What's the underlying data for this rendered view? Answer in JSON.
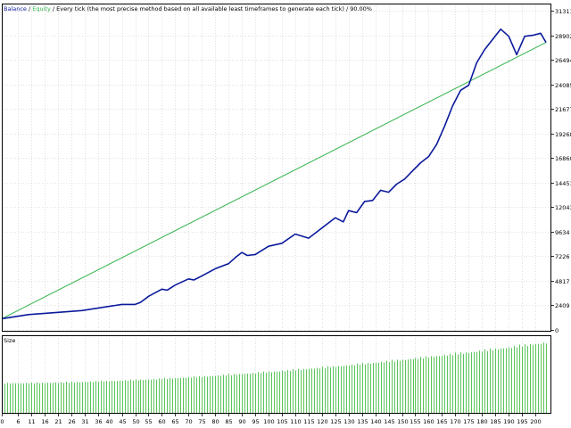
{
  "legend": {
    "balance_label": "Balance",
    "separator": " / ",
    "equity_label": "Equity",
    "description": " / Every tick (the most precise method based on all available least timeframes to generate each tick) / 90.00%"
  },
  "size_panel_label": "Size",
  "colors": {
    "balance": "#0b1a9c",
    "equity": "#32b24a",
    "size_bars": "#5cc45c",
    "grid": "#c8c8c8",
    "border": "#000000"
  },
  "chart_data": [
    {
      "type": "line",
      "series": [
        {
          "name": "Balance",
          "x": [
            0,
            10,
            20,
            30,
            40,
            45,
            50,
            52,
            55,
            60,
            62,
            65,
            70,
            72,
            75,
            80,
            85,
            88,
            90,
            92,
            95,
            100,
            105,
            110,
            115,
            118,
            120,
            125,
            128,
            130,
            133,
            136,
            139,
            142,
            145,
            148,
            151,
            154,
            157,
            160,
            163,
            166,
            169,
            172,
            175,
            178,
            181,
            184,
            187,
            190,
            193,
            196,
            199,
            202,
            204
          ],
          "values": [
            1100,
            1500,
            1700,
            1900,
            2300,
            2500,
            2500,
            2700,
            3300,
            4000,
            3900,
            4400,
            5000,
            4900,
            5300,
            6000,
            6500,
            7200,
            7600,
            7300,
            7400,
            8200,
            8500,
            9400,
            9000,
            9600,
            10000,
            11000,
            10600,
            11700,
            11500,
            12600,
            12700,
            13700,
            13500,
            14300,
            14800,
            15600,
            16400,
            17000,
            18200,
            20000,
            22000,
            23500,
            24000,
            26200,
            27500,
            28500,
            29500,
            28800,
            27000,
            28800,
            28900,
            29100,
            28200
          ],
          "color": "#0b1a9c"
        },
        {
          "name": "Equity",
          "x": [
            0,
            204
          ],
          "values": [
            1100,
            28200
          ],
          "color": "#32b24a"
        }
      ],
      "y_ticks": [
        "0",
        "2409",
        "4817",
        "7226",
        "9634",
        "12043",
        "14451",
        "16860",
        "19268",
        "21677",
        "24085",
        "26494",
        "28902",
        "31311"
      ],
      "ylim": [
        0,
        31311
      ],
      "grid": true
    },
    {
      "type": "bar",
      "title": "Size",
      "x_ticks": [
        "0",
        "6",
        "11",
        "16",
        "21",
        "26",
        "31",
        "36",
        "40",
        "45",
        "50",
        "55",
        "60",
        "65",
        "70",
        "75",
        "80",
        "85",
        "90",
        "95",
        "100",
        "105",
        "110",
        "115",
        "120",
        "125",
        "130",
        "135",
        "140",
        "145",
        "150",
        "155",
        "160",
        "165",
        "170",
        "175",
        "180",
        "185",
        "190",
        "195",
        "200"
      ],
      "xlim": [
        0,
        206
      ],
      "bars": {
        "count": 205,
        "start": 0.4,
        "end": 0.95,
        "curve": 1.8
      },
      "grid": true
    }
  ]
}
